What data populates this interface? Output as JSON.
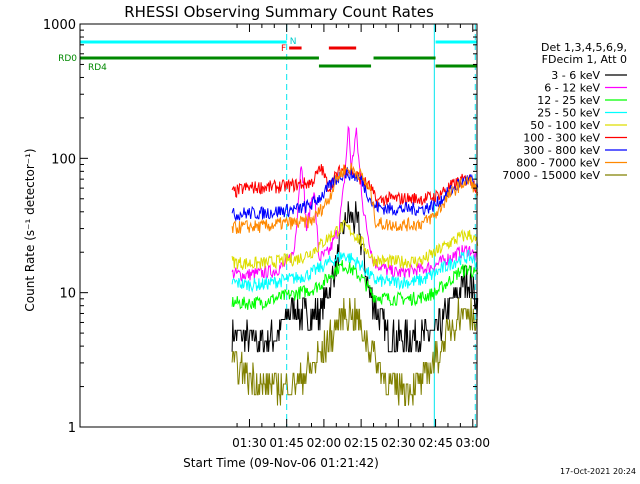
{
  "chart_data": {
    "type": "line",
    "title": "RHESSI Observing Summary Count Rates",
    "xlabel": "Start Time (09-Nov-06 01:21:42)",
    "ylabel": "Count Rate (s⁻¹ detector⁻¹)",
    "yscale": "log",
    "ylim": [
      1,
      1000
    ],
    "xlim_minutes": [
      21.7,
      181.7
    ],
    "x_ticks": [
      {
        "label": "01:30",
        "minutes": 90
      },
      {
        "label": "01:45",
        "minutes": 105
      },
      {
        "label": "02:00",
        "minutes": 120
      },
      {
        "label": "02:15",
        "minutes": 135
      },
      {
        "label": "02:30",
        "minutes": 150
      },
      {
        "label": "02:45",
        "minutes": 165
      },
      {
        "label": "03:00",
        "minutes": 180
      }
    ],
    "y_ticks": [
      {
        "label": "1",
        "value": 1
      },
      {
        "label": "10",
        "value": 10
      },
      {
        "label": "100",
        "value": 100
      },
      {
        "label": "1000",
        "value": 1000
      }
    ],
    "legend": {
      "position": "right",
      "header": [
        "Det 1,3,4,5,6,9,",
        "FDecim 1, Att 0"
      ]
    },
    "series": [
      {
        "name": "3 - 6 keV",
        "color": "#000000",
        "points": [
          [
            83,
            5
          ],
          [
            88,
            4.6
          ],
          [
            95,
            4.4
          ],
          [
            100,
            4.6
          ],
          [
            104,
            6
          ],
          [
            107,
            8
          ],
          [
            110,
            7
          ],
          [
            114,
            6.5
          ],
          [
            118,
            7
          ],
          [
            122,
            10
          ],
          [
            126,
            20
          ],
          [
            128,
            30
          ],
          [
            130,
            40
          ],
          [
            132,
            36
          ],
          [
            134,
            30
          ],
          [
            136,
            20
          ],
          [
            138,
            10
          ],
          [
            142,
            7
          ],
          [
            146,
            4.8
          ],
          [
            150,
            4.5
          ],
          [
            155,
            4.6
          ],
          [
            160,
            4.8
          ],
          [
            165,
            5
          ],
          [
            168,
            6
          ],
          [
            172,
            9
          ],
          [
            176,
            12
          ],
          [
            179,
            12.5
          ],
          [
            182,
            8
          ]
        ]
      },
      {
        "name": "6 - 12 keV",
        "color": "#ff00ff",
        "points": [
          [
            83,
            14
          ],
          [
            88,
            13.5
          ],
          [
            95,
            14
          ],
          [
            100,
            14.5
          ],
          [
            104,
            16
          ],
          [
            108,
            20
          ],
          [
            111,
            100
          ],
          [
            113,
            30
          ],
          [
            116,
            60
          ],
          [
            118,
            18
          ],
          [
            122,
            20
          ],
          [
            126,
            30
          ],
          [
            128,
            60
          ],
          [
            130,
            180
          ],
          [
            131,
            80
          ],
          [
            133,
            160
          ],
          [
            136,
            40
          ],
          [
            140,
            17
          ],
          [
            146,
            14.5
          ],
          [
            150,
            14
          ],
          [
            155,
            14.5
          ],
          [
            160,
            15
          ],
          [
            165,
            16
          ],
          [
            170,
            18
          ],
          [
            175,
            20
          ],
          [
            179,
            21
          ],
          [
            182,
            17
          ]
        ]
      },
      {
        "name": "12 - 25 keV",
        "color": "#00ff00",
        "points": [
          [
            83,
            8.5
          ],
          [
            88,
            8.3
          ],
          [
            95,
            8.5
          ],
          [
            100,
            9
          ],
          [
            105,
            9.5
          ],
          [
            110,
            10
          ],
          [
            115,
            10.5
          ],
          [
            120,
            12
          ],
          [
            125,
            15
          ],
          [
            128,
            16
          ],
          [
            131,
            15
          ],
          [
            135,
            13
          ],
          [
            140,
            9.5
          ],
          [
            146,
            9
          ],
          [
            150,
            9
          ],
          [
            155,
            9
          ],
          [
            160,
            9.3
          ],
          [
            165,
            10
          ],
          [
            170,
            12
          ],
          [
            175,
            14.5
          ],
          [
            179,
            15
          ],
          [
            182,
            13
          ]
        ]
      },
      {
        "name": "25 - 50 keV",
        "color": "#00ffff",
        "points": [
          [
            83,
            12
          ],
          [
            88,
            11.5
          ],
          [
            95,
            11.5
          ],
          [
            100,
            12
          ],
          [
            105,
            12.5
          ],
          [
            110,
            13
          ],
          [
            115,
            14
          ],
          [
            120,
            16
          ],
          [
            125,
            18
          ],
          [
            128,
            19
          ],
          [
            131,
            18
          ],
          [
            135,
            16
          ],
          [
            140,
            12.5
          ],
          [
            146,
            12
          ],
          [
            150,
            12
          ],
          [
            155,
            12
          ],
          [
            160,
            12.5
          ],
          [
            165,
            14
          ],
          [
            170,
            16
          ],
          [
            175,
            18
          ],
          [
            179,
            18.5
          ],
          [
            182,
            16
          ]
        ]
      },
      {
        "name": "50 - 100 keV",
        "color": "#dddd00",
        "points": [
          [
            83,
            17
          ],
          [
            88,
            16.5
          ],
          [
            95,
            16.5
          ],
          [
            100,
            17
          ],
          [
            105,
            17.5
          ],
          [
            110,
            18
          ],
          [
            115,
            20
          ],
          [
            120,
            24
          ],
          [
            125,
            29
          ],
          [
            128,
            31
          ],
          [
            131,
            29
          ],
          [
            135,
            24
          ],
          [
            140,
            17.5
          ],
          [
            146,
            17
          ],
          [
            150,
            17
          ],
          [
            155,
            17
          ],
          [
            160,
            17.5
          ],
          [
            165,
            20
          ],
          [
            170,
            23
          ],
          [
            175,
            26
          ],
          [
            179,
            27
          ],
          [
            182,
            23
          ]
        ]
      },
      {
        "name": "100 - 300 keV",
        "color": "#ff0000",
        "points": [
          [
            83,
            55
          ],
          [
            88,
            60
          ],
          [
            95,
            61
          ],
          [
            100,
            61
          ],
          [
            105,
            62
          ],
          [
            110,
            64
          ],
          [
            115,
            66
          ],
          [
            119,
            85
          ],
          [
            122,
            60
          ],
          [
            125,
            75
          ],
          [
            128,
            85
          ],
          [
            131,
            80
          ],
          [
            135,
            70
          ],
          [
            139,
            60
          ],
          [
            141,
            48
          ],
          [
            146,
            50
          ],
          [
            150,
            50
          ],
          [
            155,
            50
          ],
          [
            160,
            50
          ],
          [
            165,
            52
          ],
          [
            170,
            60
          ],
          [
            175,
            68
          ],
          [
            179,
            70
          ],
          [
            182,
            60
          ]
        ]
      },
      {
        "name": "300 - 800 keV",
        "color": "#0000ff",
        "points": [
          [
            83,
            38
          ],
          [
            88,
            39
          ],
          [
            95,
            39
          ],
          [
            100,
            40
          ],
          [
            105,
            41
          ],
          [
            110,
            42
          ],
          [
            115,
            45
          ],
          [
            120,
            55
          ],
          [
            125,
            70
          ],
          [
            128,
            78
          ],
          [
            131,
            76
          ],
          [
            135,
            70
          ],
          [
            140,
            44
          ],
          [
            146,
            42
          ],
          [
            150,
            42
          ],
          [
            155,
            42
          ],
          [
            160,
            42
          ],
          [
            165,
            45
          ],
          [
            170,
            55
          ],
          [
            175,
            66
          ],
          [
            179,
            70
          ],
          [
            182,
            58
          ]
        ]
      },
      {
        "name": "800 - 7000 keV",
        "color": "#ff8800",
        "points": [
          [
            83,
            30
          ],
          [
            88,
            31
          ],
          [
            95,
            31
          ],
          [
            100,
            32
          ],
          [
            105,
            33
          ],
          [
            110,
            33
          ],
          [
            115,
            34
          ],
          [
            119,
            42
          ],
          [
            122,
            50
          ],
          [
            125,
            70
          ],
          [
            128,
            82
          ],
          [
            131,
            84
          ],
          [
            135,
            75
          ],
          [
            139,
            55
          ],
          [
            141,
            33
          ],
          [
            146,
            32
          ],
          [
            150,
            32
          ],
          [
            155,
            32
          ],
          [
            160,
            33
          ],
          [
            165,
            38
          ],
          [
            170,
            52
          ],
          [
            175,
            64
          ],
          [
            179,
            68
          ],
          [
            182,
            55
          ]
        ]
      },
      {
        "name": "7000 - 15000 keV",
        "color": "#808000",
        "points": [
          [
            83,
            3
          ],
          [
            88,
            2.5
          ],
          [
            95,
            2
          ],
          [
            100,
            2
          ],
          [
            105,
            2
          ],
          [
            110,
            2.2
          ],
          [
            115,
            2.8
          ],
          [
            120,
            3.8
          ],
          [
            125,
            5.5
          ],
          [
            128,
            7
          ],
          [
            131,
            7.2
          ],
          [
            135,
            5.5
          ],
          [
            140,
            3.5
          ],
          [
            146,
            2
          ],
          [
            150,
            2
          ],
          [
            155,
            2
          ],
          [
            160,
            2.2
          ],
          [
            165,
            3.2
          ],
          [
            170,
            5
          ],
          [
            175,
            7
          ],
          [
            179,
            7.5
          ],
          [
            182,
            5
          ]
        ]
      }
    ],
    "annotations": {
      "flag_labels": [
        "N",
        "F",
        "RD0",
        "RD4"
      ],
      "night_segments": [
        [
          21.7,
          105
        ],
        [
          165,
          181.7
        ]
      ],
      "flare_segments": [
        [
          106,
          111
        ],
        [
          122,
          133
        ]
      ],
      "rd0_segments": [
        [
          21.7,
          118
        ],
        [
          140,
          165
        ]
      ],
      "rd4_segments": [
        [
          118,
          139
        ],
        [
          165,
          181.7
        ]
      ],
      "vlines_solid": [
        21.7,
        164.5
      ],
      "vlines_dashed": [
        105,
        181
      ]
    }
  },
  "footer": {
    "date_stamp": "17-Oct-2021 20:24"
  }
}
